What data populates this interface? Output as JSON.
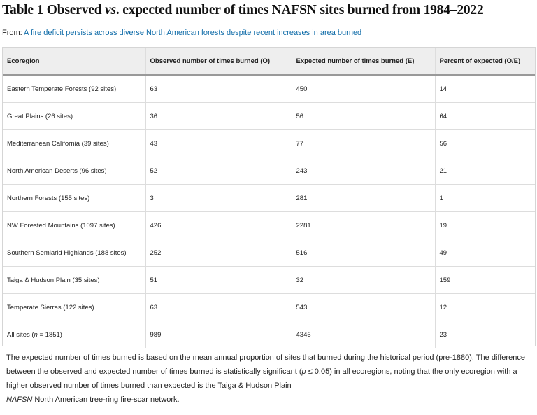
{
  "title": {
    "part1": "Table 1 Observed ",
    "vs": "vs",
    "part2": ". expected number of times NAFSN sites burned from 1984–2022"
  },
  "from": {
    "label": "From: ",
    "link_text": "A fire deficit persists across diverse North American forests despite recent increases in area burned"
  },
  "table": {
    "headers": [
      "Ecoregion",
      "Observed number of times burned (O)",
      "Expected number of times burned (E)",
      "Percent of expected (O/E)"
    ],
    "rows": [
      [
        "Eastern Temperate Forests (92 sites)",
        "63",
        "450",
        "14"
      ],
      [
        "Great Plains (26 sites)",
        "36",
        "56",
        "64"
      ],
      [
        "Mediterranean California (39 sites)",
        "43",
        "77",
        "56"
      ],
      [
        "North American Deserts (96 sites)",
        "52",
        "243",
        "21"
      ],
      [
        "Northern Forests (155 sites)",
        "3",
        "281",
        "1"
      ],
      [
        "NW Forested Mountains (1097 sites)",
        "426",
        "2281",
        "19"
      ],
      [
        "Southern Semiarid Highlands (188 sites)",
        "252",
        "516",
        "49"
      ],
      [
        "Taiga & Hudson Plain (35 sites)",
        "51",
        "32",
        "159"
      ],
      [
        "Temperate Sierras (122 sites)",
        "63",
        "543",
        "12"
      ]
    ],
    "total_row": {
      "label_prefix": "All sites (",
      "label_n": "n",
      "label_suffix": " = 1851)",
      "observed": "989",
      "expected": "4346",
      "percent": "23"
    }
  },
  "footnote": {
    "line1_start": "The expected number of times burned is based on the mean annual proportion of sites that burned during the historical period (pre-1880). The difference between the observed and expected number of times burned is statistically significant (",
    "p": "p",
    "line1_end": " ≤ 0.05) in all ecoregions, noting that the only ecoregion with a higher observed number of times burned than expected is the Taiga & Hudson Plain",
    "abbr": "NAFSN",
    "abbr_def": " North American tree-ring fire-scar network."
  },
  "colors": {
    "link": "#0e6ba8",
    "header_bg": "#eeeeee",
    "header_rule": "#999999",
    "grid": "#dddddd"
  }
}
